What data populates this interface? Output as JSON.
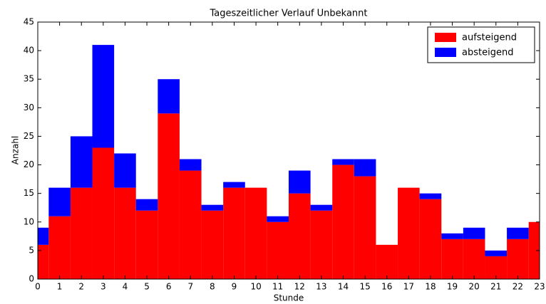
{
  "chart_data": {
    "type": "bar",
    "stacked": true,
    "title": "Tageszeitlicher Verlauf Unbekannt",
    "x_label": "Stunde",
    "y_label": "Anzahl",
    "x": [
      0,
      1,
      2,
      3,
      4,
      5,
      6,
      7,
      8,
      9,
      10,
      11,
      12,
      13,
      14,
      15,
      16,
      17,
      18,
      19,
      20,
      21,
      22,
      23
    ],
    "series": [
      {
        "name": "aufsteigend",
        "color": "#ff0000",
        "values": [
          6,
          11,
          16,
          23,
          16,
          12,
          29,
          19,
          12,
          16,
          16,
          10,
          15,
          12,
          20,
          18,
          6,
          16,
          14,
          7,
          7,
          4,
          7,
          10
        ]
      },
      {
        "name": "absteigend",
        "color": "#0000ff",
        "values": [
          3,
          5,
          9,
          18,
          6,
          2,
          6,
          2,
          1,
          1,
          0,
          1,
          4,
          1,
          1,
          3,
          0,
          0,
          1,
          1,
          2,
          1,
          2,
          0
        ]
      }
    ],
    "xlim": [
      0,
      23
    ],
    "xticks": [
      0,
      1,
      2,
      3,
      4,
      5,
      6,
      7,
      8,
      9,
      10,
      11,
      12,
      13,
      14,
      15,
      16,
      17,
      18,
      19,
      20,
      21,
      22,
      23
    ],
    "ylim": [
      0,
      45
    ],
    "yticks": [
      0,
      5,
      10,
      15,
      20,
      25,
      30,
      35,
      40,
      45
    ],
    "legend": "upper right"
  }
}
